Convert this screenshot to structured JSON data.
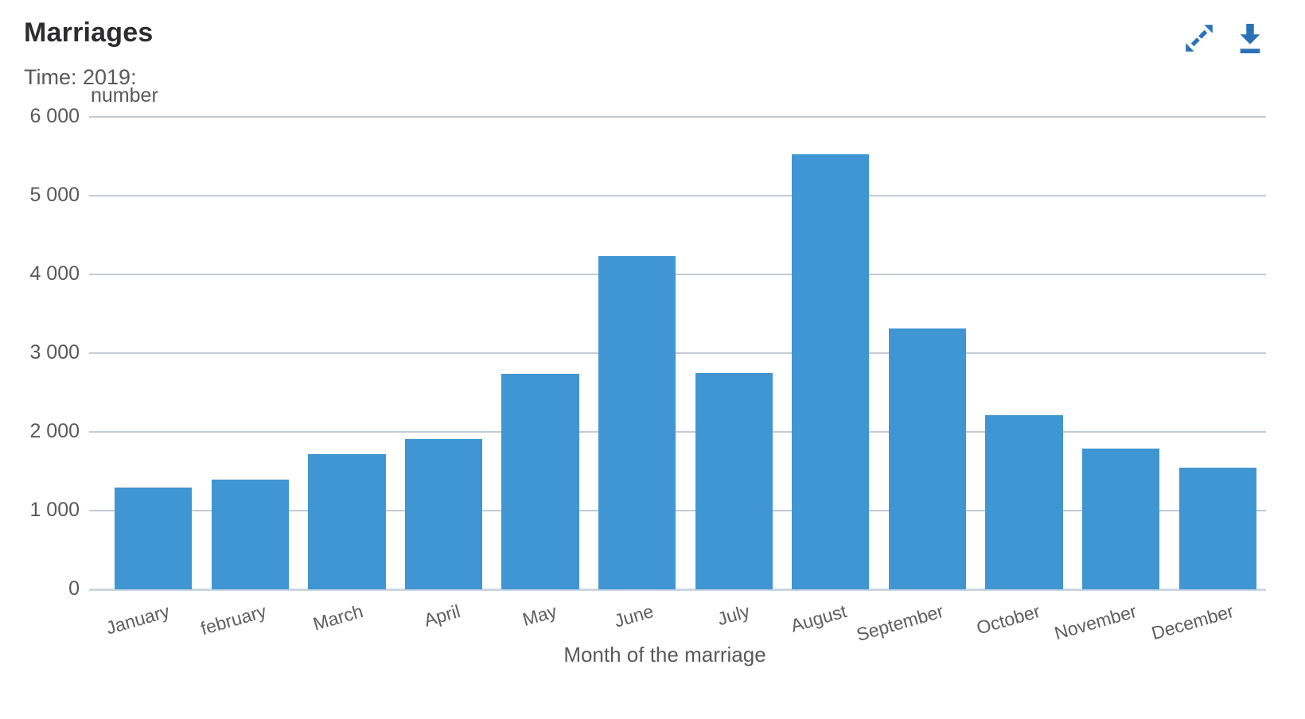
{
  "header": {
    "title": "Marriages",
    "subtitle": "Time: 2019:"
  },
  "toolbar": {
    "icons": [
      "expand-icon",
      "download-icon"
    ]
  },
  "colors": {
    "bar": "#3f96d2",
    "icon": "#2b71b8",
    "grid": "#c2cbd2",
    "axis_line": "#ccd5e2",
    "title_text": "#2d2d2f",
    "label_text": "#58595b"
  },
  "chart_data": {
    "type": "bar",
    "title": "Marriages",
    "subtitle": "Time: 2019:",
    "ylabel": "number",
    "xlabel": "Month of the marriage",
    "categories": [
      "January",
      "february",
      "March",
      "April",
      "May",
      "June",
      "July",
      "August",
      "September",
      "October",
      "November",
      "December"
    ],
    "values": [
      1290,
      1390,
      1720,
      1910,
      2740,
      4230,
      2750,
      5530,
      3310,
      2210,
      1790,
      1550
    ],
    "ylim": [
      0,
      6000
    ],
    "ytick_labels": [
      "6 000",
      "5 000",
      "4 000",
      "3 000",
      "2 000",
      "1 000",
      "0"
    ],
    "grid": true,
    "legend": "none",
    "x_label_rotation_deg": -16
  }
}
